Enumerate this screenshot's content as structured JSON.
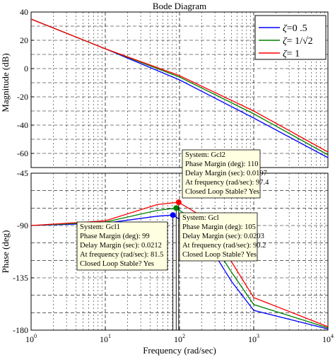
{
  "chart_data": [
    {
      "type": "line",
      "title": "Bode Diagram",
      "xlabel": "Frequency  (rad/sec)",
      "ylabel": "Magnitude (dB)",
      "x_scale": "log",
      "xlim": [
        1,
        10000
      ],
      "ylim": [
        -70,
        40
      ],
      "x_ticks": [
        {
          "base": "10",
          "exp": "0",
          "value": 1
        },
        {
          "base": "10",
          "exp": "1",
          "value": 10
        },
        {
          "base": "10",
          "exp": "2",
          "value": 100
        },
        {
          "base": "10",
          "exp": "3",
          "value": 1000
        },
        {
          "base": "10",
          "exp": "4",
          "value": 10000
        }
      ],
      "y_ticks": [
        40,
        20,
        0,
        -20,
        -40,
        -60
      ],
      "grid": true,
      "legend_position": "top-right",
      "legend": [
        {
          "zeta": "ζ",
          "value": "=0 .5",
          "color": "#0000ff"
        },
        {
          "zeta": "ζ",
          "value": "= 1/√2",
          "color": "#008000"
        },
        {
          "zeta": "ζ",
          "value": "= 1",
          "color": "#ff0000"
        }
      ],
      "series": [
        {
          "color": "#0000ff",
          "x": [
            1,
            10,
            100,
            1000,
            10000
          ],
          "y": [
            35,
            14,
            -8,
            -35,
            -63
          ]
        },
        {
          "color": "#008000",
          "x": [
            1,
            10,
            100,
            1000,
            10000
          ],
          "y": [
            35,
            14,
            -6,
            -32,
            -61
          ]
        },
        {
          "color": "#ff0000",
          "x": [
            1,
            10,
            100,
            1000,
            10000
          ],
          "y": [
            35,
            14,
            -5,
            -30,
            -59
          ]
        }
      ]
    },
    {
      "type": "line",
      "xlabel": "Frequency  (rad/sec)",
      "ylabel": "Phase (deg)",
      "x_scale": "log",
      "xlim": [
        1,
        10000
      ],
      "ylim": [
        -180,
        -45
      ],
      "y_ticks": [
        -45,
        -90,
        -135,
        -180
      ],
      "grid": true,
      "series": [
        {
          "color": "#0000ff",
          "x": [
            1,
            10,
            50,
            81.5,
            200,
            500,
            1000,
            10000
          ],
          "y": [
            -90,
            -88,
            -82,
            -81,
            -97,
            -138,
            -163,
            -179
          ]
        },
        {
          "color": "#008000",
          "x": [
            1,
            10,
            50,
            90.2,
            200,
            500,
            1000,
            10000
          ],
          "y": [
            -90,
            -87,
            -77,
            -75,
            -90,
            -130,
            -158,
            -178
          ]
        },
        {
          "color": "#ff0000",
          "x": [
            1,
            10,
            50,
            97.4,
            200,
            500,
            1000,
            10000
          ],
          "y": [
            -90,
            -86,
            -72,
            -70,
            -82,
            -121,
            -152,
            -177
          ]
        }
      ],
      "markers": [
        {
          "color": "#0000ff",
          "x": 81.5,
          "y": -81
        },
        {
          "color": "#008000",
          "x": 90.2,
          "y": -75
        },
        {
          "color": "#ff0000",
          "x": 97.4,
          "y": -70
        }
      ],
      "annotations": [
        {
          "system": "System: Gcl2",
          "phase_margin": "Phase Margin (deg): 110",
          "delay_margin": "Delay Margin (sec): 0.0197",
          "frequency": "At frequency (rad/sec): 97.4",
          "stable": "Closed Loop Stable? Yes"
        },
        {
          "system": "System: Gcl1",
          "phase_margin": "Phase Margin (deg): 99",
          "delay_margin": "Delay Margin (sec): 0.0212",
          "frequency": "At frequency (rad/sec): 81.5",
          "stable": "Closed Loop Stable? Yes"
        },
        {
          "system": "System: Gcl",
          "phase_margin": "Phase Margin (deg): 105",
          "delay_margin": "Delay Margin (sec): 0.0203",
          "frequency": "At frequency (rad/sec): 90.2",
          "stable": "Closed Loop Stable? Yes"
        }
      ]
    }
  ]
}
